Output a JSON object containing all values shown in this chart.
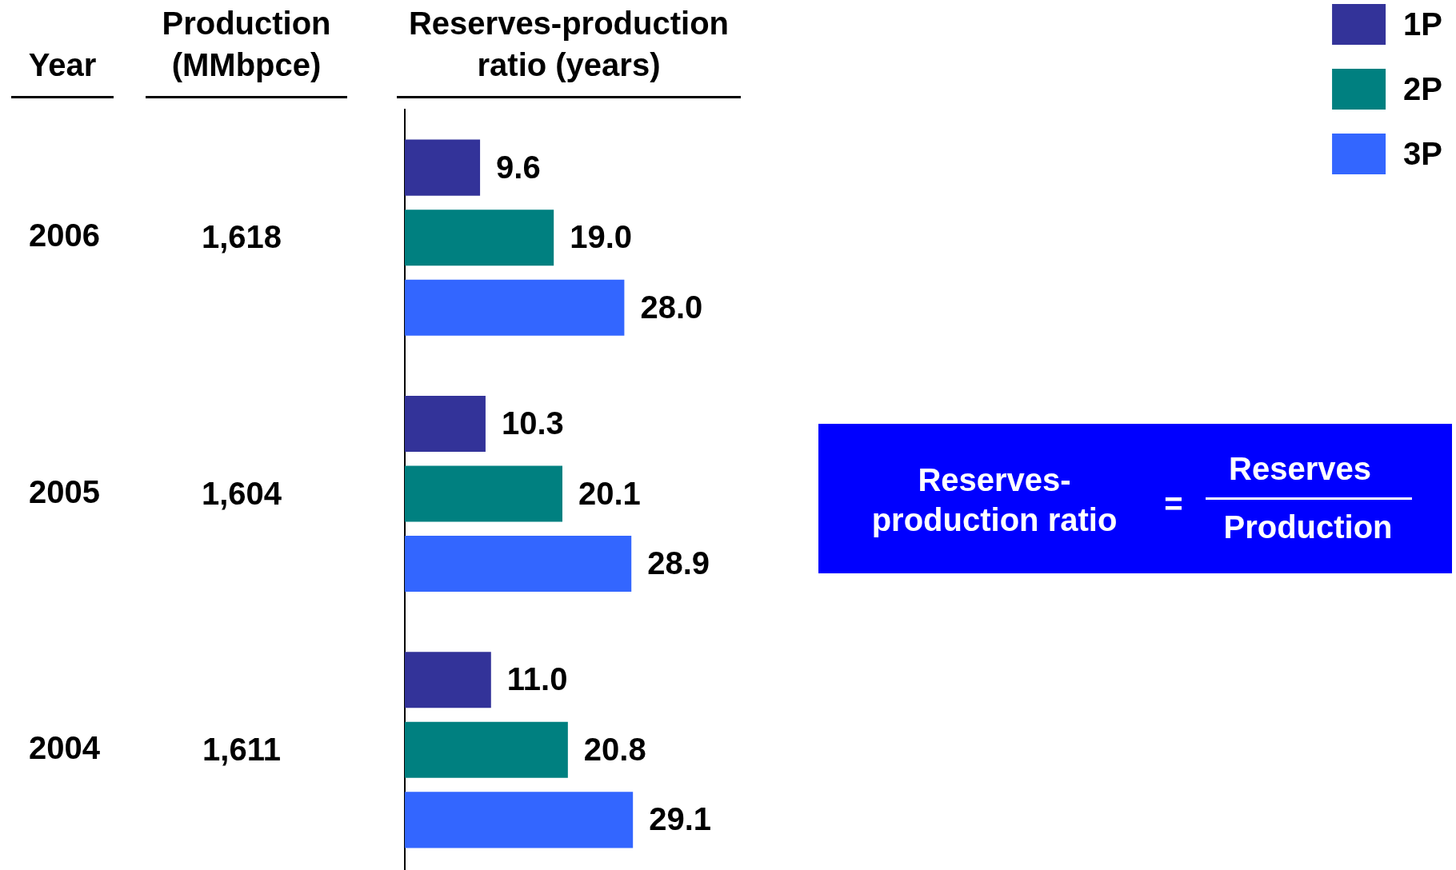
{
  "chart_data": {
    "type": "bar",
    "orientation": "horizontal",
    "ylabel": "Year",
    "xlabel": "Reserves-production ratio (years)",
    "categories": [
      "2006",
      "2005",
      "2004"
    ],
    "series": [
      {
        "name": "1P",
        "color": "#333399",
        "values": [
          9.6,
          10.3,
          11.0
        ],
        "value_labels": [
          "9.6",
          "10.3",
          "11.0"
        ]
      },
      {
        "name": "2P",
        "color": "#008080",
        "values": [
          19.0,
          20.1,
          20.8
        ],
        "value_labels": [
          "19.0",
          "20.1",
          "20.8"
        ]
      },
      {
        "name": "3P",
        "color": "#3366ff",
        "values": [
          28.0,
          28.9,
          29.1
        ],
        "value_labels": [
          "28.0",
          "28.9",
          "29.1"
        ]
      }
    ],
    "legend": "top right",
    "tick_labels": "y",
    "annotations": [
      "Production (MMbpce)",
      "1,618",
      "1,604",
      "1,611",
      "Reserves-production ratio",
      "=",
      "Reserves",
      "Production"
    ]
  }
}
